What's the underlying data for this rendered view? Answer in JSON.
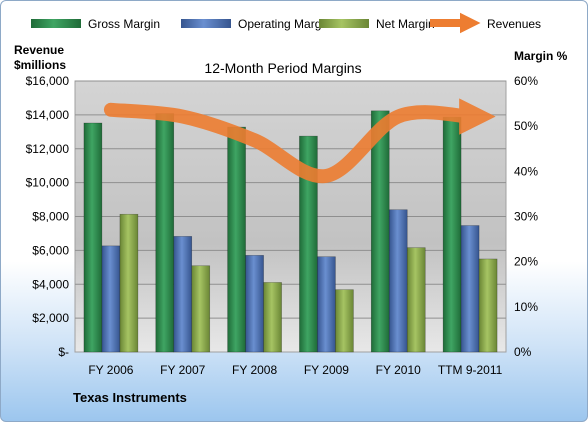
{
  "chart_data": {
    "type": "bar",
    "title": "12-Month Period Margins",
    "left_axis_label": [
      "Revenue",
      "$millions"
    ],
    "right_axis_label": "Margin %",
    "footer": "Texas Instruments",
    "categories": [
      "FY 2006",
      "FY 2007",
      "FY 2008",
      "FY 2009",
      "FY 2010",
      "TTM 9-2011"
    ],
    "left_ticks": [
      "$-",
      "$2,000",
      "$4,000",
      "$6,000",
      "$8,000",
      "$10,000",
      "$12,000",
      "$14,000",
      "$16,000"
    ],
    "right_ticks": [
      "0%",
      "10%",
      "20%",
      "30%",
      "40%",
      "50%",
      "60%"
    ],
    "ylim_left": [
      0,
      16000
    ],
    "ylim_right": [
      0,
      60
    ],
    "legend_position": "top",
    "series": [
      {
        "name": "Gross Margin",
        "axis": "right",
        "kind": "bar",
        "color": "#2e8b4e",
        "values": [
          50.7,
          52.8,
          49.8,
          47.8,
          53.4,
          52.0
        ]
      },
      {
        "name": "Operating Margin",
        "axis": "right",
        "kind": "bar",
        "color": "#4f73b8",
        "values": [
          23.5,
          25.6,
          21.4,
          21.1,
          31.5,
          28.0
        ]
      },
      {
        "name": "Net Margin",
        "axis": "right",
        "kind": "bar",
        "color": "#8fae4c",
        "values": [
          30.5,
          19.1,
          15.4,
          13.8,
          23.1,
          20.6
        ]
      },
      {
        "name": "Revenues",
        "axis": "left",
        "kind": "line",
        "color": "#ed7d31",
        "values": [
          14300,
          13900,
          12500,
          10400,
          13900,
          13900
        ]
      }
    ]
  }
}
